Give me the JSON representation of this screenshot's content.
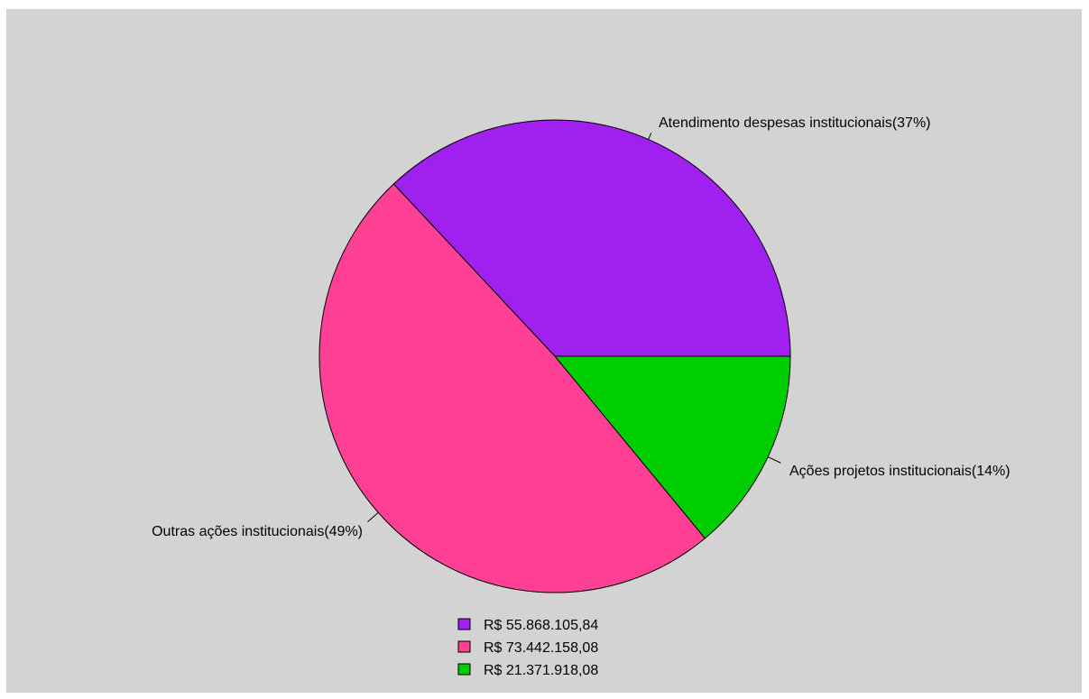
{
  "chart_data": {
    "type": "pie",
    "title": "",
    "slices": [
      {
        "label": "Atendimento despesas institucionais(37%)",
        "percent": 37,
        "legend_value": "R$ 55.868.105,84",
        "color": "#a020f0"
      },
      {
        "label": "Ações projetos institucionais(14%)",
        "percent": 14,
        "legend_value": "R$ 21.371.918,08",
        "color": "#00cd00"
      },
      {
        "label": "Outras ações institucionais(49%)",
        "percent": 49,
        "legend_value": "R$ 73.442.158,08",
        "color": "#ff4094"
      }
    ],
    "legend": [
      {
        "label": "R$ 55.868.105,84",
        "color": "#a020f0"
      },
      {
        "label": "R$ 73.442.158,08",
        "color": "#ff4094"
      },
      {
        "label": "R$ 21.371.918,08",
        "color": "#00cd00"
      }
    ],
    "legend_position": "bottom-center",
    "background_color": "#d3d3d3"
  }
}
